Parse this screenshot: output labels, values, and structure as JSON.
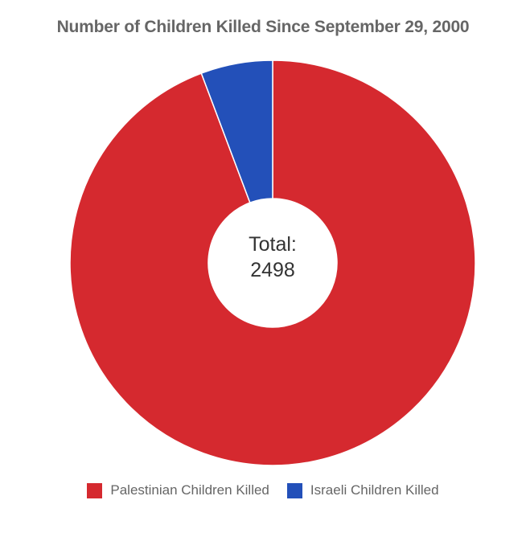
{
  "chart_data": {
    "type": "pie",
    "title": "Number of Children Killed Since September 29, 2000",
    "center_label": {
      "line1": "Total:",
      "line2": "2498"
    },
    "slices": [
      {
        "label": "Palestinian Children Killed",
        "value": 2355,
        "color": "#d5292f"
      },
      {
        "label": "Israeli Children Killed",
        "value": 143,
        "color": "#2350b9"
      }
    ],
    "start_angle_deg": 0,
    "legend_position": "bottom"
  }
}
